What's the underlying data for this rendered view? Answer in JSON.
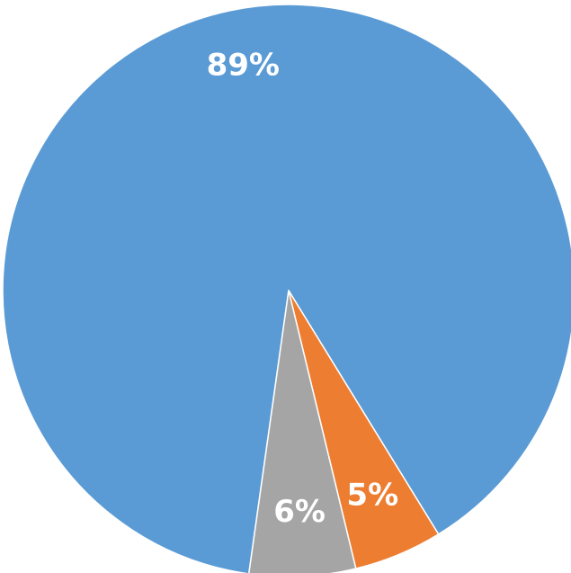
{
  "chart_data": {
    "type": "pie",
    "start_angle_deg": 188,
    "direction": "counterclockwise",
    "slices": [
      {
        "value": 89,
        "label": "89%",
        "color": "#5B9BD5"
      },
      {
        "value": 5,
        "label": "5%",
        "color": "#ED7D31"
      },
      {
        "value": 6,
        "label": "6%",
        "color": "#A5A5A5"
      }
    ],
    "legend": "none",
    "title": ""
  }
}
